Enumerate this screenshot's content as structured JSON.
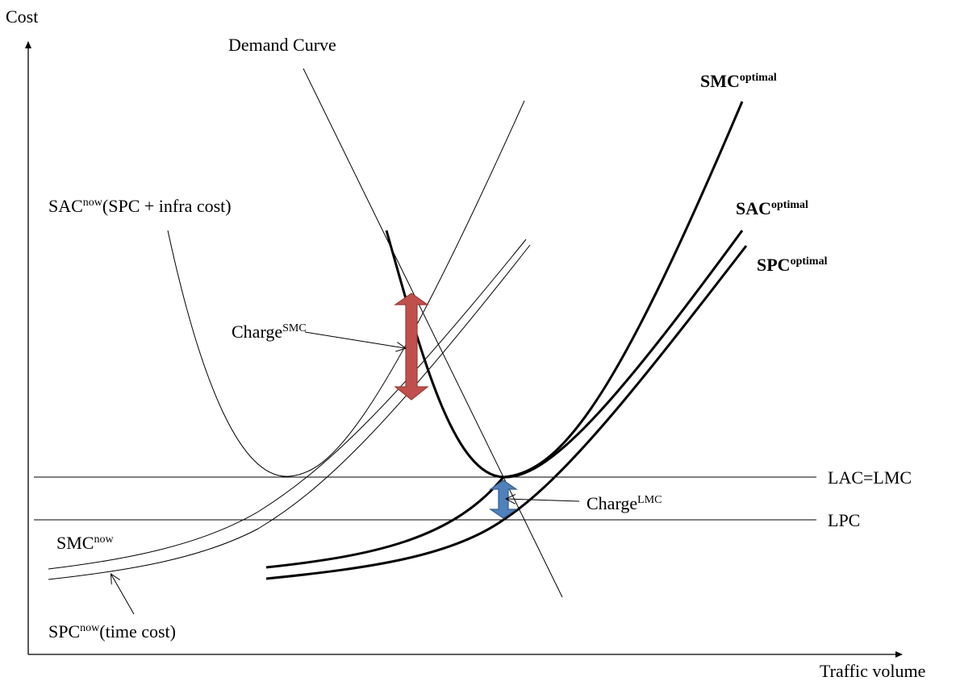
{
  "axes": {
    "y_label": "Cost",
    "x_label": "Traffic volume"
  },
  "labels": {
    "demand_curve": "Demand  Curve",
    "smc_optimal": {
      "main": "SMC",
      "sup": "optimal"
    },
    "sac_optimal": {
      "main": "SAC",
      "sup": "optimal"
    },
    "spc_optimal": {
      "main": "SPC",
      "sup": "optimal"
    },
    "sac_now": {
      "main": "SAC",
      "sup": "now",
      "rest": "(SPC + infra cost)"
    },
    "charge_smc": {
      "main": "Charge",
      "sup": "SMC"
    },
    "charge_lmc": {
      "main": "Charge",
      "sup": "LMC"
    },
    "lac_lmc": "LAC=LMC",
    "lpc": "LPC",
    "smc_now": {
      "main": "SMC",
      "sup": "now"
    },
    "spc_now": {
      "main": "SPC",
      "sup": "now",
      "rest": "(time cost)"
    }
  },
  "colors": {
    "charge_smc_arrow_fill": "#c0504d",
    "charge_smc_arrow_stroke": "#9c3b38",
    "charge_lmc_arrow_fill": "#4f81bd",
    "charge_lmc_arrow_stroke": "#385d8a"
  }
}
